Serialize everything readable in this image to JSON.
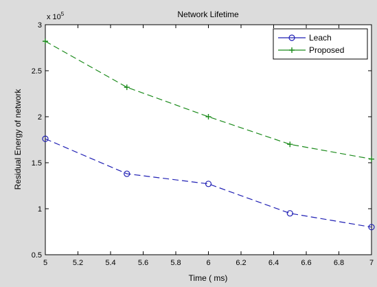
{
  "chart_data": {
    "type": "line",
    "title": "Network Lifetime",
    "xlabel": "Time ( ms)",
    "ylabel": "Residual Energy of network",
    "y_multiplier": "x 10",
    "y_exponent": "5",
    "xlim": [
      5,
      7
    ],
    "ylim": [
      0.5,
      3
    ],
    "x_ticks": [
      "5",
      "5.2",
      "5.4",
      "5.6",
      "5.8",
      "6",
      "6.2",
      "6.4",
      "6.6",
      "6.8",
      "7"
    ],
    "y_ticks": [
      "0.5",
      "1",
      "1.5",
      "2",
      "2.5",
      "3"
    ],
    "x": [
      5,
      5.5,
      6,
      6.5,
      7
    ],
    "series": [
      {
        "name": "Leach",
        "values": [
          1.76,
          1.38,
          1.27,
          0.95,
          0.8
        ],
        "color": "#1f1fb4",
        "marker": "circle"
      },
      {
        "name": "Proposed",
        "values": [
          2.82,
          2.32,
          2.0,
          1.7,
          1.54
        ],
        "color": "#1a8a1a",
        "marker": "plus"
      }
    ],
    "grid": false,
    "legend": "top-right"
  }
}
